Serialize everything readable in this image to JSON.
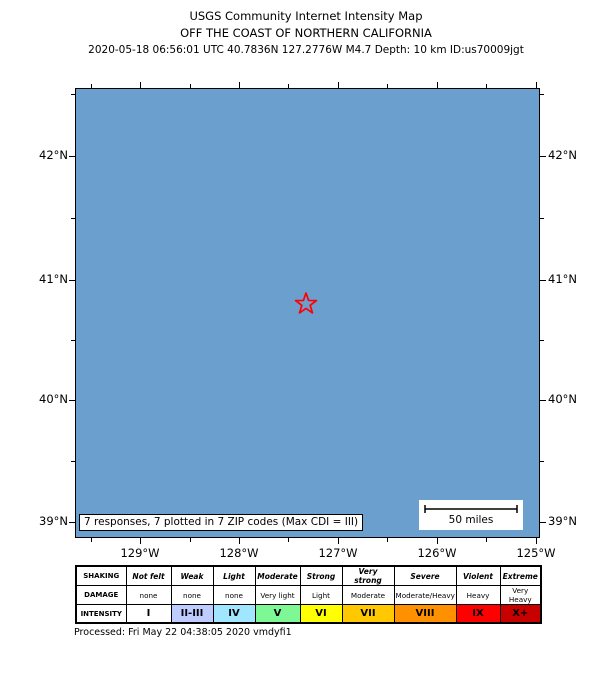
{
  "header": {
    "line1": "USGS Community Internet Intensity Map",
    "line2": "OFF THE COAST OF NORTHERN CALIFORNIA",
    "line3": "2020-05-18 06:56:01 UTC 40.7836N 127.2776W M4.7 Depth: 10 km ID:us70009jgt"
  },
  "map": {
    "ocean_color": "#6BA0CE",
    "star_color": "#FF0000",
    "lat_labels": [
      "42°N",
      "41°N",
      "40°N",
      "39°N"
    ],
    "lon_labels": [
      "129°W",
      "128°W",
      "127°W",
      "126°W",
      "125°W"
    ],
    "responses_note": "7 responses, 7 plotted in 7 ZIP codes (Max CDI = III)",
    "scale_label": "50 miles"
  },
  "legend": {
    "row_headers": [
      "SHAKING",
      "DAMAGE",
      "INTENSITY"
    ],
    "columns": [
      {
        "shaking": "Not felt",
        "damage": "none",
        "intensity": "I",
        "color": "#FFFFFF"
      },
      {
        "shaking": "Weak",
        "damage": "none",
        "intensity": "II-III",
        "color": "#BFCCFF"
      },
      {
        "shaking": "Light",
        "damage": "none",
        "intensity": "IV",
        "color": "#A0E6FF"
      },
      {
        "shaking": "Moderate",
        "damage": "Very light",
        "intensity": "V",
        "color": "#7DF894"
      },
      {
        "shaking": "Strong",
        "damage": "Light",
        "intensity": "VI",
        "color": "#FFFF00"
      },
      {
        "shaking": "Very strong",
        "damage": "Moderate",
        "intensity": "VII",
        "color": "#FFC800"
      },
      {
        "shaking": "Severe",
        "damage": "Moderate/Heavy",
        "intensity": "VIII",
        "color": "#FF9100"
      },
      {
        "shaking": "Violent",
        "damage": "Heavy",
        "intensity": "IX",
        "color": "#FF0000"
      },
      {
        "shaking": "Extreme",
        "damage": "Very Heavy",
        "intensity": "X+",
        "color": "#C80000"
      }
    ]
  },
  "footer": {
    "processed": "Processed: Fri May 22 04:38:05 2020 vmdyfi1"
  }
}
